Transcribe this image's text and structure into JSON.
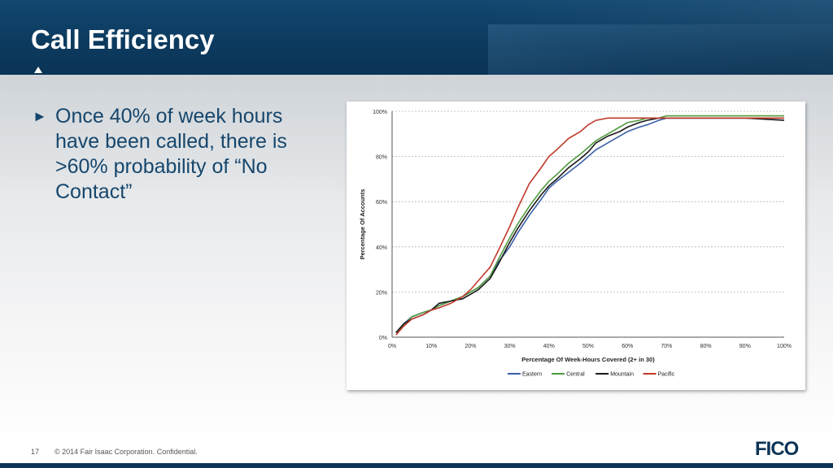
{
  "slide": {
    "title": "Call Efficiency",
    "bullet": "Once 40% of week hours have been called, there is >60% probability of “No Contact”",
    "page_number": "17",
    "copyright": "© 2014 Fair Isaac Corporation. Confidential.",
    "logo_text": "FICO",
    "colors": {
      "header": "#0b3456",
      "bullet_text": "#16466c"
    }
  },
  "chart_data": {
    "type": "line",
    "title": "",
    "xlabel": "Percentage Of Week-Hours Covered (2+ in 30)",
    "ylabel": "Percentage Of Accounts",
    "xlim": [
      0,
      100
    ],
    "ylim": [
      0,
      100
    ],
    "x_ticks": [
      "0%",
      "10%",
      "20%",
      "30%",
      "40%",
      "50%",
      "60%",
      "70%",
      "80%",
      "90%",
      "100%"
    ],
    "y_ticks": [
      "0%",
      "20%",
      "40%",
      "60%",
      "80%",
      "100%"
    ],
    "grid": "horizontal dashed",
    "legend_position": "bottom",
    "x": [
      1,
      3,
      5,
      8,
      10,
      12,
      15,
      18,
      20,
      22,
      25,
      27,
      30,
      32,
      35,
      38,
      40,
      42,
      45,
      48,
      50,
      52,
      55,
      58,
      60,
      63,
      65,
      68,
      70,
      75,
      80,
      90,
      100
    ],
    "series": [
      {
        "name": "Eastern",
        "color": "#3a5fa8",
        "values": [
          2,
          6,
          9,
          11,
          12,
          14,
          16,
          18,
          20,
          22,
          27,
          33,
          40,
          46,
          54,
          61,
          66,
          69,
          73,
          77,
          80,
          83,
          86,
          89,
          91,
          93,
          94,
          96,
          97,
          97,
          97,
          97,
          97
        ]
      },
      {
        "name": "Central",
        "color": "#4f9a3e",
        "values": [
          2,
          5,
          9,
          11,
          12,
          14,
          16,
          18,
          20,
          22,
          27,
          34,
          44,
          50,
          58,
          65,
          69,
          72,
          77,
          81,
          84,
          87,
          90,
          93,
          95,
          96,
          97,
          97,
          98,
          98,
          98,
          98,
          98
        ]
      },
      {
        "name": "Mountain",
        "color": "#1a1a1a",
        "values": [
          2,
          6,
          8,
          10,
          12,
          15,
          16,
          17,
          19,
          21,
          26,
          32,
          42,
          48,
          56,
          63,
          67,
          70,
          75,
          79,
          82,
          86,
          89,
          91,
          93,
          95,
          96,
          97,
          97,
          97,
          97,
          97,
          96
        ]
      },
      {
        "name": "Pacific",
        "color": "#c0392b",
        "values": [
          1,
          5,
          8,
          10,
          12,
          13,
          15,
          18,
          21,
          25,
          31,
          38,
          49,
          57,
          68,
          75,
          80,
          83,
          88,
          91,
          94,
          96,
          97,
          97,
          97,
          97,
          97,
          97,
          97,
          97,
          97,
          97,
          97
        ]
      }
    ]
  }
}
